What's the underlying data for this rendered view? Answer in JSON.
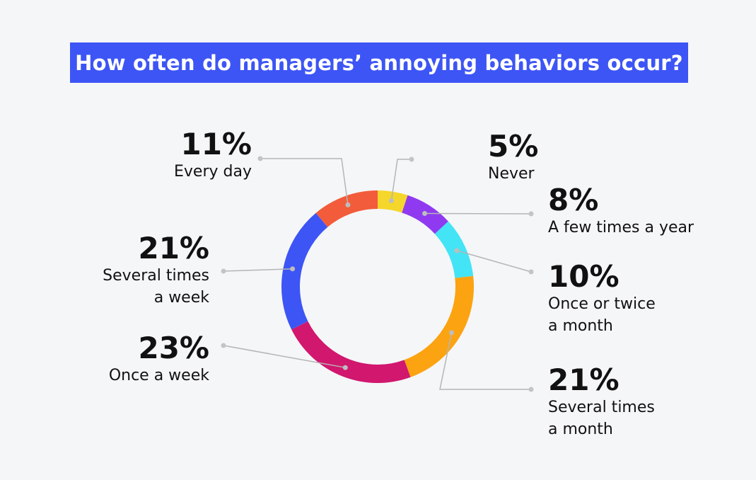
{
  "title": "How often do managers’ annoying behaviors occur?",
  "chart_data": {
    "type": "pie",
    "donut": true,
    "title": "How often do managers’ annoying behaviors occur?",
    "unit": "%",
    "slices": [
      {
        "label": "Never",
        "label_lines": [
          "Never"
        ],
        "value": 5,
        "value_label": "5%",
        "color": "#f5d62a"
      },
      {
        "label": "A few times a year",
        "label_lines": [
          "A few times a year"
        ],
        "value": 8,
        "value_label": "8%",
        "color": "#8f3af0"
      },
      {
        "label": "Once or twice a month",
        "label_lines": [
          "Once or twice",
          "a month"
        ],
        "value": 10,
        "value_label": "10%",
        "color": "#43e4f5"
      },
      {
        "label": "Several times a month",
        "label_lines": [
          "Several times",
          "a month"
        ],
        "value": 21,
        "value_label": "21%",
        "color": "#fca311"
      },
      {
        "label": "Once a week",
        "label_lines": [
          "Once a week"
        ],
        "value": 23,
        "value_label": "23%",
        "color": "#d1176e"
      },
      {
        "label": "Several times a week",
        "label_lines": [
          "Several times",
          "a week"
        ],
        "value": 21,
        "value_label": "21%",
        "color": "#3d55f5"
      },
      {
        "label": "Every day",
        "label_lines": [
          "Every day"
        ],
        "value": 11,
        "value_label": "11%",
        "color": "#f25c3a"
      }
    ]
  },
  "colors": {
    "background": "#f5f6f8",
    "title_bar": "#3d55f5",
    "leader_line": "#b5b5b5"
  }
}
